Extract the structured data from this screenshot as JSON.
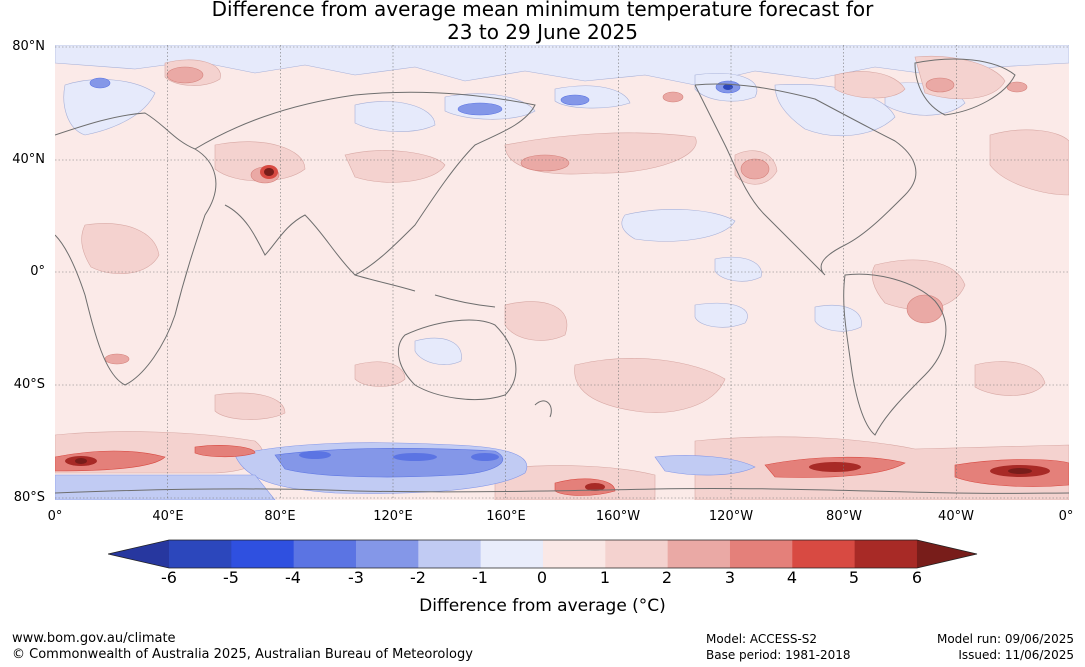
{
  "title": {
    "line1": "Difference from average mean minimum temperature forecast for",
    "line2": "23 to 29 June 2025"
  },
  "map": {
    "lat_labels": [
      "80°N",
      "40°N",
      "0°",
      "40°S",
      "80°S"
    ],
    "lon_labels": [
      "0°",
      "40°E",
      "80°E",
      "120°E",
      "160°E",
      "160°W",
      "120°W",
      "80°W",
      "40°W",
      "0°"
    ],
    "grid": true
  },
  "colorbar": {
    "ticks": [
      "-6",
      "-5",
      "-4",
      "-3",
      "-2",
      "-1",
      "0",
      "1",
      "2",
      "3",
      "4",
      "5",
      "6"
    ],
    "colors": [
      "#27379f",
      "#2c47bc",
      "#2f50e0",
      "#5b74e3",
      "#8497e8",
      "#c1cbf3",
      "#e9edfb",
      "#fae8e6",
      "#f4d2cf",
      "#eaa9a5",
      "#e4807a",
      "#d84a42",
      "#a82a26",
      "#781d1a"
    ],
    "label": "Difference from average (°C)"
  },
  "footer": {
    "website": "www.bom.gov.au/climate",
    "copyright": "© Commonwealth of Australia 2025, Australian Bureau of Meteorology",
    "model": "Model: ACCESS-S2",
    "base_period": "Base period: 1981-2018",
    "model_run": "Model run: 09/06/2025",
    "issued": "Issued: 11/06/2025"
  }
}
